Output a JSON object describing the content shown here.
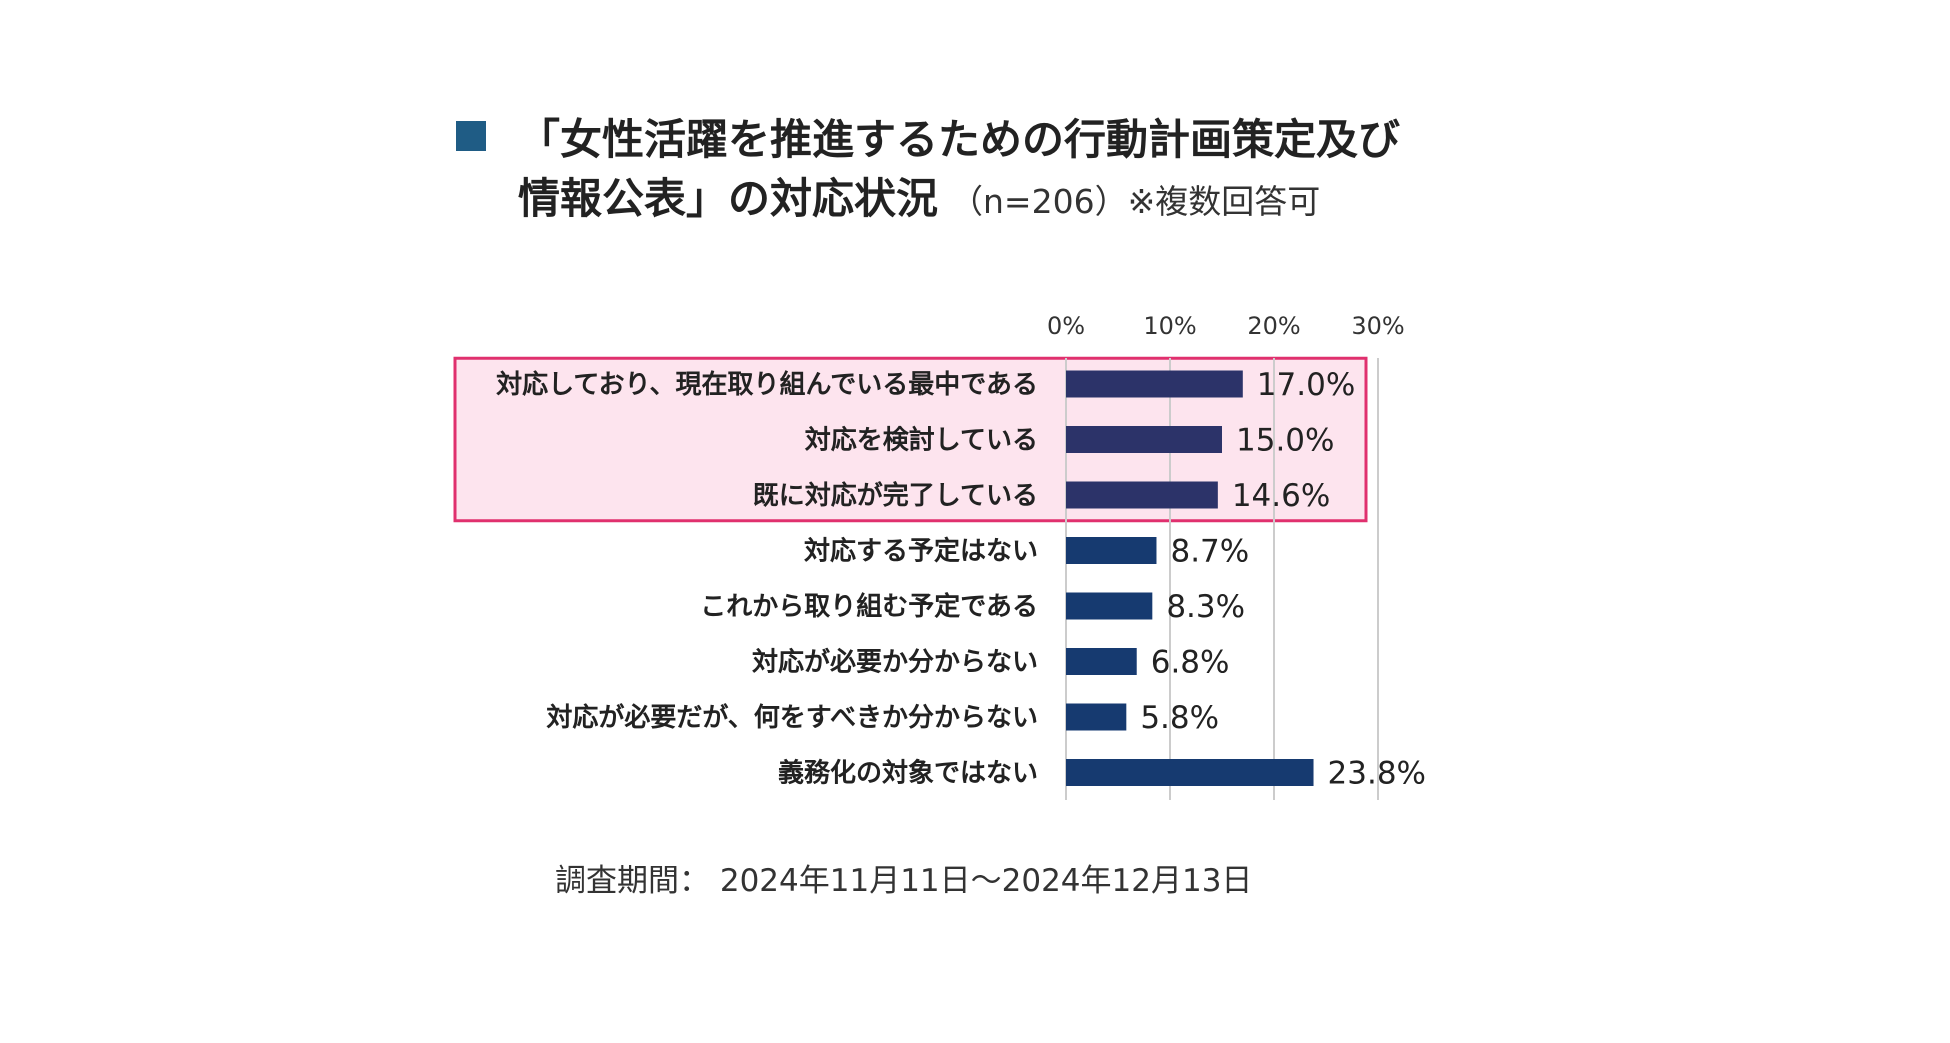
{
  "title": {
    "line1": "「女性活躍を推進するための行動計画策定及び",
    "line2": "情報公表」の対応状況",
    "note": "（n=206）※複数回答可"
  },
  "colors": {
    "marker": "#1f5c85",
    "bar_highlight": "#2c3369",
    "bar_default": "#163a70",
    "highlight_fill": "#fde4ee",
    "highlight_border": "#e0306e",
    "grid": "#cccccc"
  },
  "chart_data": {
    "type": "bar",
    "orientation": "horizontal",
    "categories": [
      "対応しており、現在取り組んでいる最中である",
      "対応を検討している",
      "既に対応が完了している",
      "対応する予定はない",
      "これから取り組む予定である",
      "対応が必要か分からない",
      "対応が必要だが、何をすべきか分からない",
      "義務化の対象ではない"
    ],
    "values": [
      17.0,
      15.0,
      14.6,
      8.7,
      8.3,
      6.8,
      5.8,
      23.8
    ],
    "value_labels": [
      "17.0%",
      "15.0%",
      "14.6%",
      "8.7%",
      "8.3%",
      "6.8%",
      "5.8%",
      "23.8%"
    ],
    "x_ticks": [
      0,
      10,
      20,
      30
    ],
    "x_tick_labels": [
      "0%",
      "10%",
      "20%",
      "30%"
    ],
    "xlim": [
      0,
      30
    ],
    "grid": true,
    "highlighted_categories": [
      0,
      1,
      2
    ]
  },
  "footer": "調査期間： 2024年11月11日～2024年12月13日"
}
